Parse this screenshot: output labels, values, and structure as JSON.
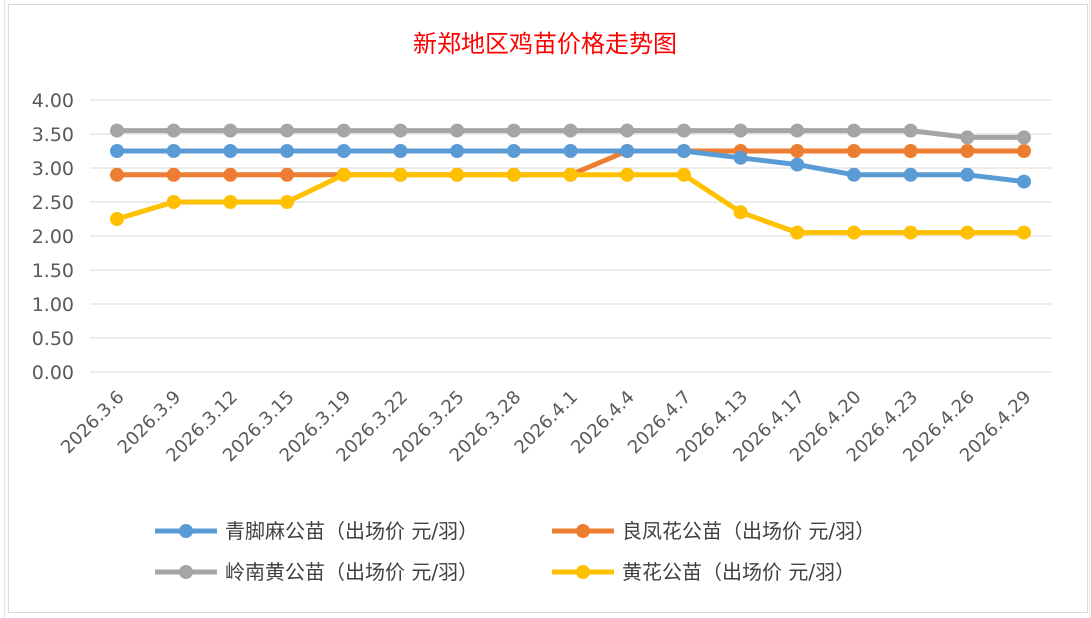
{
  "chart_data": {
    "type": "line",
    "title": "新郑地区鸡苗价格走势图",
    "xlabel": "",
    "ylabel": "",
    "ylim": [
      0,
      4
    ],
    "yticks": [
      "0.00",
      "0.50",
      "1.00",
      "1.50",
      "2.00",
      "2.50",
      "3.00",
      "3.50",
      "4.00"
    ],
    "grid": true,
    "legend_position": "bottom",
    "categories": [
      "2026.3.6",
      "2026.3.9",
      "2026.3.12",
      "2026.3.15",
      "2026.3.19",
      "2026.3.22",
      "2026.3.25",
      "2026.3.28",
      "2026.4.1",
      "2026.4.4",
      "2026.4.7",
      "2026.4.13",
      "2026.4.17",
      "2026.4.20",
      "2026.4.23",
      "2026.4.26",
      "2026.4.29"
    ],
    "series": [
      {
        "name": "青脚麻公苗（出场价 元/羽）",
        "color": "#5b9bd5",
        "values": [
          3.25,
          3.25,
          3.25,
          3.25,
          3.25,
          3.25,
          3.25,
          3.25,
          3.25,
          3.25,
          3.25,
          3.15,
          3.05,
          2.9,
          2.9,
          2.9,
          2.8
        ]
      },
      {
        "name": "良凤花公苗（出场价 元/羽）",
        "color": "#ed7d31",
        "values": [
          2.9,
          2.9,
          2.9,
          2.9,
          2.9,
          2.9,
          2.9,
          2.9,
          2.9,
          3.25,
          3.25,
          3.25,
          3.25,
          3.25,
          3.25,
          3.25,
          3.25
        ]
      },
      {
        "name": "岭南黄公苗（出场价 元/羽）",
        "color": "#a5a5a5",
        "values": [
          3.55,
          3.55,
          3.55,
          3.55,
          3.55,
          3.55,
          3.55,
          3.55,
          3.55,
          3.55,
          3.55,
          3.55,
          3.55,
          3.55,
          3.55,
          3.45,
          3.45
        ]
      },
      {
        "name": "黄花公苗（出场价 元/羽）",
        "color": "#ffc000",
        "values": [
          2.25,
          2.5,
          2.5,
          2.5,
          2.9,
          2.9,
          2.9,
          2.9,
          2.9,
          2.9,
          2.9,
          2.35,
          2.05,
          2.05,
          2.05,
          2.05,
          2.05
        ]
      }
    ],
    "draw_order": [
      1,
      2,
      0,
      3
    ]
  }
}
